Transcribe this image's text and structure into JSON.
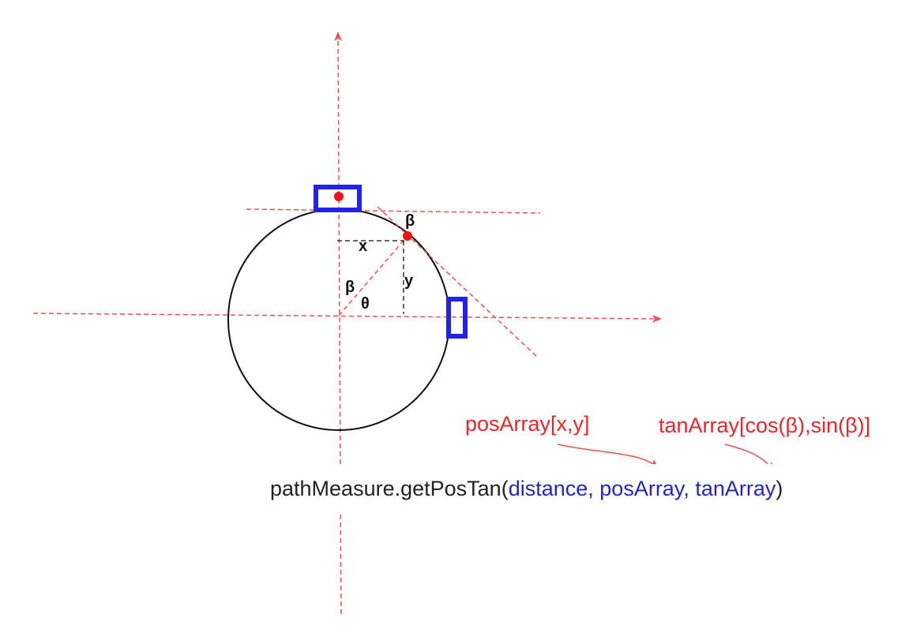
{
  "labels": {
    "beta_tangent": "β",
    "x": "x",
    "y": "y",
    "beta_center": "β",
    "theta": "θ"
  },
  "annotations": {
    "pos_array": "posArray[x,y]",
    "tan_array": "tanArray[cos(β),sin(β)]"
  },
  "code": {
    "prefix": "pathMeasure.getPosTan(",
    "arg_distance": "distance",
    "sep1": ", ",
    "arg_pos": "posArray",
    "sep2": ", ",
    "arg_tan": "tanArray",
    "suffix": ")"
  },
  "colors": {
    "axis": "#f05050",
    "highlight": "#2222ee",
    "point": "#ee1111",
    "circle": "#111111",
    "guide": "#333333"
  }
}
